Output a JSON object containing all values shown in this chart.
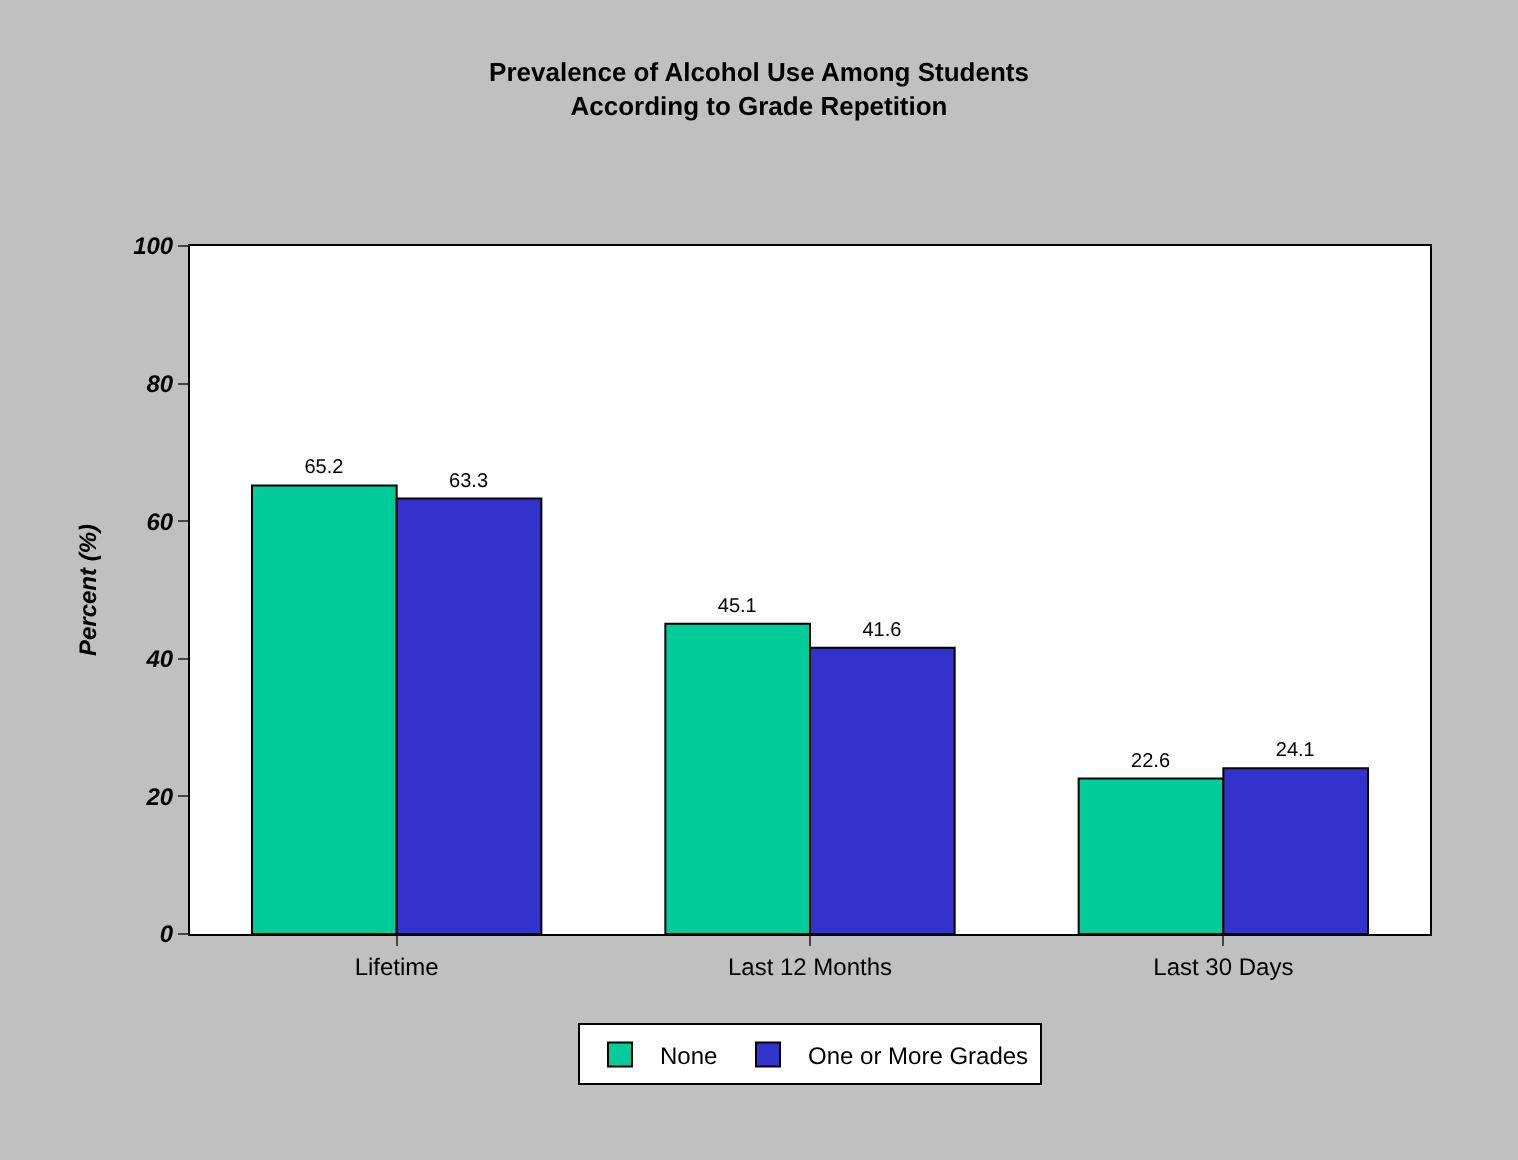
{
  "chart_data": {
    "type": "bar",
    "title": "Prevalence of Alcohol Use Among Students\nAccording to Grade Repetition",
    "ylabel": "Percent (%)",
    "categories": [
      "Lifetime",
      "Last 12 Months",
      "Last 30 Days"
    ],
    "series": [
      {
        "name": "None",
        "color": "#00cc99",
        "values": [
          65.2,
          45.1,
          22.6
        ]
      },
      {
        "name": "One or More Grades",
        "color": "#3333cc",
        "values": [
          63.3,
          41.6,
          24.1
        ]
      }
    ],
    "ylim": [
      0,
      100
    ],
    "yticks": [
      0,
      20,
      40,
      60,
      80,
      100
    ],
    "grid": false,
    "legend": "bottom",
    "data_labels": true
  }
}
